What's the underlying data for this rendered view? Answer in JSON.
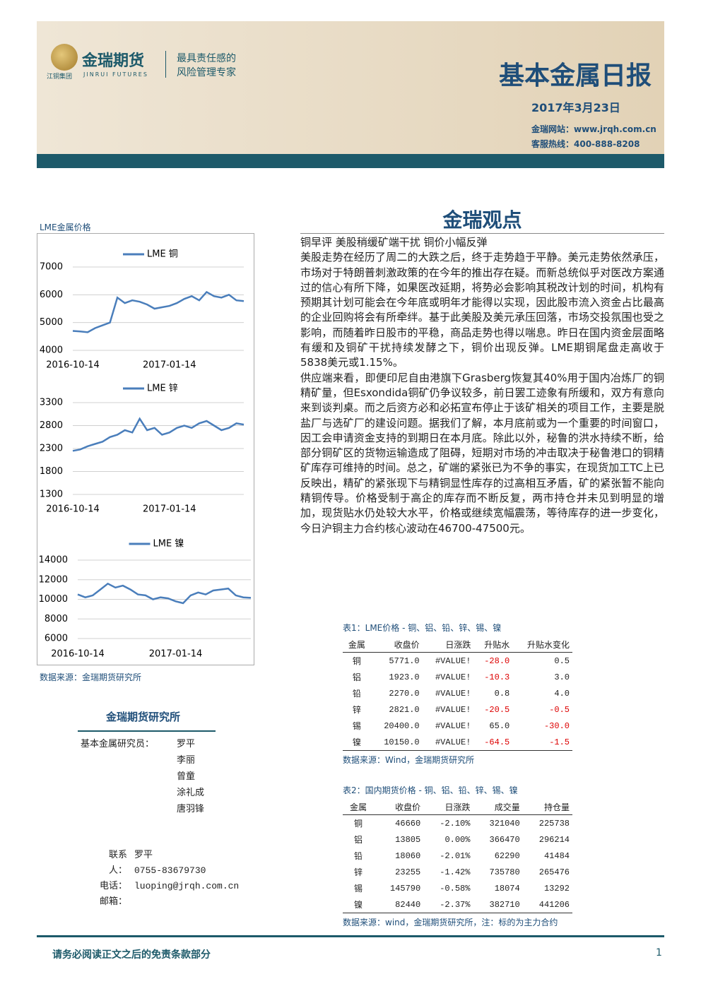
{
  "header": {
    "company": "金瑞期货",
    "company_en": "JINRUI FUTURES",
    "group": "江铜集团",
    "slogan_line1": "最具责任感的",
    "slogan_line2": "风险管理专家",
    "title": "基本金属日报",
    "date": "2017年3月23日",
    "website": "金瑞网站：www.jrqh.com.cn",
    "hotline": "客服热线：400-888-8208"
  },
  "left_panel": {
    "title": "LME金属价格",
    "source": "数据来源：金瑞期货研究所"
  },
  "chart_data": [
    {
      "type": "line",
      "categories": [
        "2016-10-14",
        null,
        null,
        null,
        null,
        null,
        null,
        null,
        null,
        null,
        null,
        null,
        null,
        "2017-01-14",
        null,
        null,
        null,
        null,
        null,
        null,
        null,
        null,
        null,
        null
      ],
      "series": [
        {
          "name": "LME 铜",
          "color": "#4a7ebb",
          "values": [
            4700,
            4680,
            4650,
            4800,
            4900,
            5000,
            5900,
            5700,
            5800,
            5750,
            5650,
            5500,
            5550,
            5600,
            5700,
            5850,
            5950,
            5800,
            6100,
            5950,
            5900,
            6000,
            5800,
            5771
          ]
        }
      ],
      "ylim": [
        4000,
        7000
      ],
      "yticks": [
        4000,
        5000,
        6000,
        7000
      ],
      "grid": true
    },
    {
      "type": "line",
      "categories": [
        "2016-10-14",
        null,
        null,
        null,
        null,
        null,
        null,
        null,
        null,
        null,
        null,
        null,
        null,
        "2017-01-14",
        null,
        null,
        null,
        null,
        null,
        null,
        null,
        null,
        null,
        null
      ],
      "series": [
        {
          "name": "LME 锌",
          "color": "#4a7ebb",
          "values": [
            2250,
            2280,
            2350,
            2400,
            2450,
            2550,
            2600,
            2700,
            2650,
            2950,
            2700,
            2750,
            2600,
            2650,
            2750,
            2800,
            2750,
            2850,
            2900,
            2800,
            2700,
            2750,
            2850,
            2821
          ]
        }
      ],
      "ylim": [
        1300,
        3300
      ],
      "yticks": [
        1300,
        1800,
        2300,
        2800,
        3300
      ],
      "grid": true
    },
    {
      "type": "line",
      "categories": [
        "2016-10-14",
        null,
        null,
        null,
        null,
        null,
        null,
        null,
        null,
        null,
        null,
        null,
        null,
        "2017-01-14",
        null,
        null,
        null,
        null,
        null,
        null,
        null,
        null,
        null,
        null
      ],
      "series": [
        {
          "name": "LME 镍",
          "color": "#4a7ebb",
          "values": [
            10500,
            10200,
            10400,
            11000,
            11600,
            11200,
            11400,
            11000,
            10500,
            10400,
            10000,
            10200,
            10100,
            9800,
            9600,
            10400,
            10700,
            10500,
            10900,
            11000,
            11100,
            10400,
            10200,
            10150
          ]
        }
      ],
      "ylim": [
        6000,
        14000
      ],
      "yticks": [
        6000,
        8000,
        10000,
        12000,
        14000
      ],
      "grid": true
    }
  ],
  "contacts": {
    "title": "金瑞期货研究所",
    "researchers_label": "基本金属研究员：",
    "researchers": [
      "罗平",
      "李丽",
      "曾童",
      "涂礼成",
      "唐羽锋"
    ],
    "contact_label": "联系人：",
    "contact_name": "罗平",
    "phone_label": "电话：",
    "phone": "0755-83679730",
    "email_label": "邮箱：",
    "email": "luoping@jrqh.com.cn"
  },
  "view": {
    "title": "金瑞观点",
    "headline": "铜早评 美股稍缓矿端干扰 铜价小幅反弹",
    "paragraphs": [
      "美股走势在经历了周二的大跌之后，终于走势趋于平静。美元走势依然承压，市场对于特朗普刺激政策的在今年的推出存在疑。而新总统似乎对医改方案通过的信心有所下降，如果医改延期，将势必会影响其税改计划的时间，机构有预期其计划可能会在今年底或明年才能得以实现，因此股市流入资金占比最高的企业回购将会有所牵绊。基于此美股及美元承压回落，市场交投氛围也受之影响，而随着昨日股市的平稳，商品走势也得以喘息。昨日在国内资金层面略有缓和及铜矿干扰持续发酵之下，铜价出现反弹。LME期铜尾盘走高收于5838美元或1.15%。",
      "供应端来看，即便印尼自由港旗下Grasberg恢复其40%用于国内冶炼厂的铜精矿量，但Esxondida铜矿仍争议较多，前日罢工迹象有所缓和，双方有意向来到谈判桌。而之后资方必和必拓宣布停止于该矿相关的项目工作，主要是脱盐厂与选矿厂的建设问题。据我们了解，本月底前或为一个重要的时间窗口，因工会申请资金支持的到期日在本月底。除此以外，秘鲁的洪水持续不断，给部分铜矿区的货物运输造成了阻碍，短期对市场的冲击取决于秘鲁港口的铜精矿库存可维持的时间。总之，矿端的紧张已为不争的事实，在现货加工TC上已反映出，精矿的紧张现下与精铜显性库存的过高相互矛盾，矿的紧张暂不能向精铜传导。价格受制于高企的库存而不断反复，两市持仓并未见到明显的增加，现货贴水仍处较大水平，价格或继续宽幅震荡，等待库存的进一步变化，今日沪铜主力合约核心波动在46700-47500元。"
    ]
  },
  "tables": [
    {
      "caption": "表1：LME价格 - 铜、铝、铅、锌、锡、镍",
      "columns": [
        "金属",
        "收盘价",
        "日涨跌",
        "升贴水",
        "升贴水变化"
      ],
      "rows": [
        [
          "铜",
          "5771.0",
          "#VALUE!",
          "-28.0",
          "0.5"
        ],
        [
          "铝",
          "1923.0",
          "#VALUE!",
          "-10.3",
          "3.0"
        ],
        [
          "铅",
          "2270.0",
          "#VALUE!",
          "0.8",
          "4.0"
        ],
        [
          "锌",
          "2821.0",
          "#VALUE!",
          "-20.5",
          "-0.5"
        ],
        [
          "锡",
          "20400.0",
          "#VALUE!",
          "65.0",
          "-30.0"
        ],
        [
          "镍",
          "10150.0",
          "#VALUE!",
          "-64.5",
          "-1.5"
        ]
      ],
      "source": "数据来源：Wind，金瑞期货研究所"
    },
    {
      "caption": "表2：国内期货价格 - 铜、铝、铅、锌、锡、镍",
      "columns": [
        "金属",
        "收盘价",
        "日涨跌",
        "成交量",
        "持仓量"
      ],
      "rows": [
        [
          "铜",
          "46660",
          "-2.10%",
          "321040",
          "225738"
        ],
        [
          "铝",
          "13805",
          "0.00%",
          "366470",
          "296214"
        ],
        [
          "铅",
          "18060",
          "-2.01%",
          "62290",
          "41484"
        ],
        [
          "锌",
          "23255",
          "-1.42%",
          "735780",
          "265476"
        ],
        [
          "锡",
          "145790",
          "-0.58%",
          "18074",
          "13292"
        ],
        [
          "镍",
          "82440",
          "-2.37%",
          "382710",
          "441206"
        ]
      ],
      "source": "数据来源：wind，金瑞期货研究所，注：标的为主力合约"
    }
  ],
  "footer": {
    "disclaimer": "请务必阅读正文之后的免责条款部分",
    "page": "1"
  }
}
